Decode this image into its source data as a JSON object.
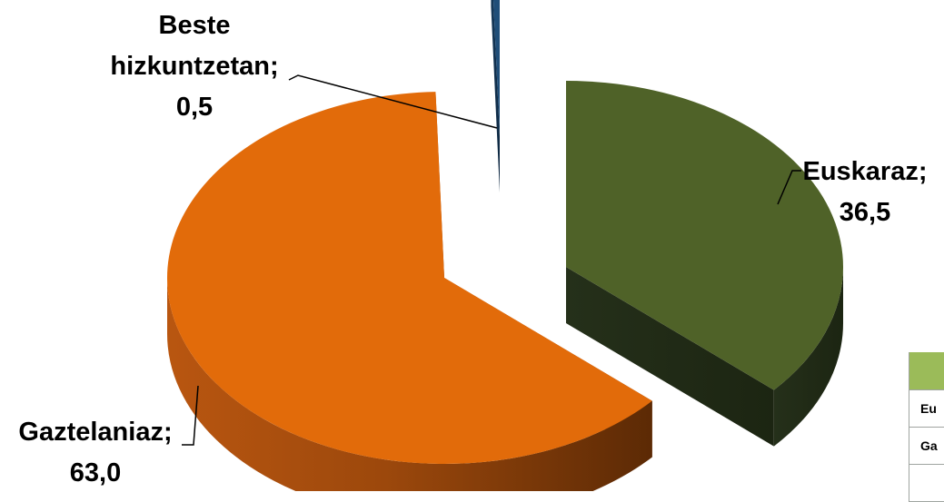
{
  "chart_data": {
    "type": "pie",
    "style": "3d-exploded",
    "title": "",
    "slices": [
      {
        "label": "Euskaraz",
        "value": 36.5,
        "value_text": "36,5",
        "color": "#4f6228"
      },
      {
        "label": "Gaztelaniaz",
        "value": 63.0,
        "value_text": "63,0",
        "color": "#e26b0a"
      },
      {
        "label": "Beste hizkuntzetan",
        "value": 0.5,
        "value_text": "0,5",
        "color": "#1f4e79"
      }
    ],
    "labels": {
      "euskaraz": {
        "line1": "Euskaraz;",
        "line2": "36,5"
      },
      "gaztelaniaz": {
        "line1": "Gaztelaniaz;",
        "line2": "63,0"
      },
      "beste": {
        "line1": "Beste",
        "line2": "hizkuntzetan;",
        "line3": "0,5"
      }
    }
  },
  "side_table": {
    "rows": [
      "Eu",
      "Ga"
    ]
  }
}
